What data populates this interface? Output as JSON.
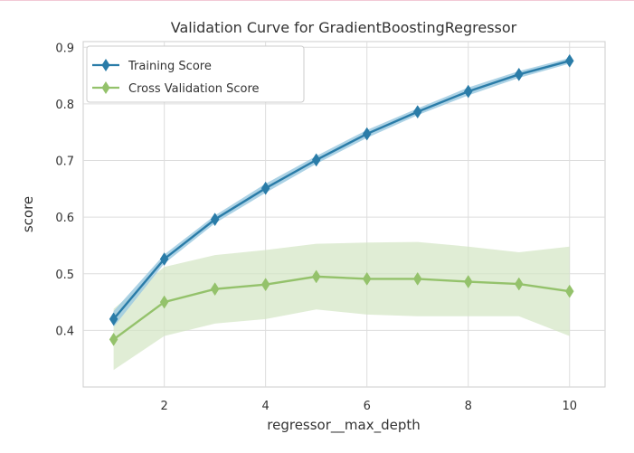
{
  "chart_data": {
    "type": "line",
    "title": "Validation Curve for GradientBoostingRegressor",
    "xlabel": "regressor__max_depth",
    "ylabel": "score",
    "x": [
      1,
      2,
      3,
      4,
      5,
      6,
      7,
      8,
      9,
      10
    ],
    "xlim": [
      0.4,
      10.7
    ],
    "ylim": [
      0.3,
      0.91
    ],
    "xticks": [
      2,
      4,
      6,
      8,
      10
    ],
    "yticks": [
      0.4,
      0.5,
      0.6,
      0.7,
      0.8,
      0.9
    ],
    "grid": true,
    "legend_position": "top-left",
    "series": [
      {
        "name": "Training Score",
        "color": "#1f77b4",
        "line_color": "#2a7ca8",
        "band_color": "#9ecae1",
        "marker": "diamond",
        "values": [
          0.42,
          0.526,
          0.596,
          0.651,
          0.701,
          0.747,
          0.786,
          0.822,
          0.852,
          0.876
        ],
        "band_lower": [
          0.406,
          0.518,
          0.589,
          0.643,
          0.694,
          0.74,
          0.78,
          0.815,
          0.846,
          0.871
        ],
        "band_upper": [
          0.434,
          0.534,
          0.603,
          0.659,
          0.708,
          0.754,
          0.792,
          0.829,
          0.858,
          0.881
        ]
      },
      {
        "name": "Cross Validation Score",
        "color": "#8fbf6a",
        "line_color": "#94c26b",
        "band_color": "#d3e6c3",
        "marker": "diamond",
        "values": [
          0.384,
          0.45,
          0.473,
          0.481,
          0.495,
          0.491,
          0.491,
          0.486,
          0.482,
          0.469
        ],
        "band_lower": [
          0.33,
          0.39,
          0.412,
          0.42,
          0.437,
          0.428,
          0.425,
          0.425,
          0.425,
          0.39
        ],
        "band_upper": [
          0.438,
          0.512,
          0.533,
          0.542,
          0.553,
          0.555,
          0.556,
          0.548,
          0.538,
          0.548
        ]
      }
    ]
  }
}
